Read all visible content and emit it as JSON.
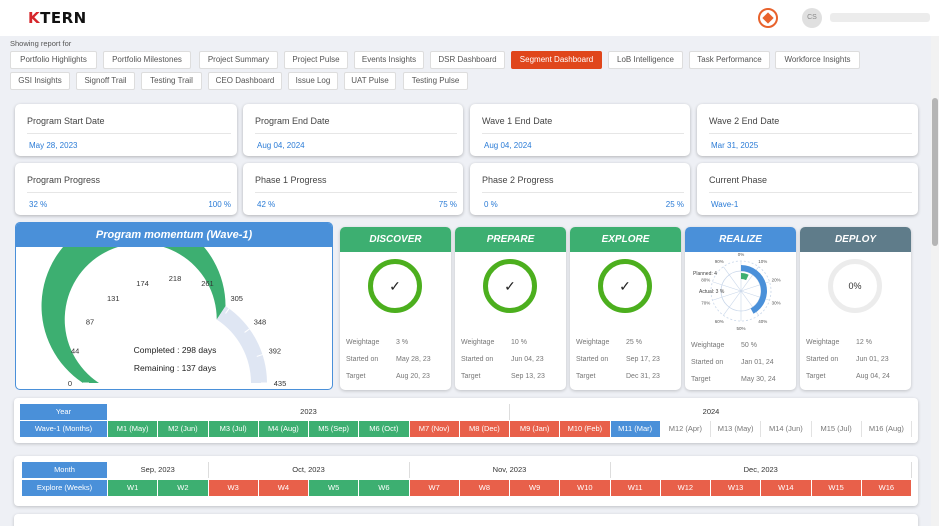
{
  "app": {
    "logo_k": "K",
    "logo_rest": "TERN",
    "avatar_initials": "CS"
  },
  "colors": {
    "accent": "#e0461b",
    "blue": "#4a90d9",
    "green": "#3daf71",
    "red": "#e8604a",
    "ring": "#4caf1e"
  },
  "report": {
    "showing_label": "Showing report for",
    "tabs": [
      "Portfolio Highlights",
      "Portfolio Milestones",
      "Project Summary",
      "Project Pulse",
      "Events Insights",
      "DSR Dashboard",
      "Segment Dashboard",
      "LoB Intelligence",
      "Task Performance",
      "Workforce Insights",
      "GSI Insights",
      "Signoff Trail",
      "Testing Trail",
      "CEO Dashboard",
      "Issue Log",
      "UAT Pulse",
      "Testing Pulse"
    ],
    "active_tab": "Segment Dashboard"
  },
  "summary": {
    "program_start": {
      "label": "Program Start Date",
      "value": "May 28, 2023"
    },
    "program_end": {
      "label": "Program End Date",
      "value": "Aug 04, 2024"
    },
    "wave1_end": {
      "label": "Wave 1 End Date",
      "value": "Aug 04, 2024"
    },
    "wave2_end": {
      "label": "Wave 2 End Date",
      "value": "Mar 31, 2025"
    },
    "program_progress": {
      "label": "Program Progress",
      "value": "32 %",
      "max": "100 %"
    },
    "phase1_progress": {
      "label": "Phase 1 Progress",
      "value": "42 %",
      "max": "75 %"
    },
    "phase2_progress": {
      "label": "Phase 2 Progress",
      "value": "0 %",
      "max": "25 %"
    },
    "current_phase": {
      "label": "Current Phase",
      "value": "Wave-1"
    }
  },
  "momentum": {
    "title": "Program momentum (Wave-1)",
    "completed": "Completed : 298 days",
    "remaining": "Remaining : 137 days",
    "completed_days": 298,
    "total_days": 435,
    "ticks": [
      "0",
      "44",
      "87",
      "131",
      "174",
      "218",
      "261",
      "305",
      "348",
      "392",
      "435"
    ]
  },
  "phases": [
    {
      "name": "DISCOVER",
      "color": "#3daf71",
      "status": "complete",
      "weightage": "3 %",
      "started": "May 28, 23",
      "target": "Aug 20, 23"
    },
    {
      "name": "PREPARE",
      "color": "#3daf71",
      "status": "complete",
      "weightage": "10 %",
      "started": "Jun 04, 23",
      "target": "Sep 13, 23"
    },
    {
      "name": "EXPLORE",
      "color": "#3daf71",
      "status": "complete",
      "weightage": "25 %",
      "started": "Sep 17, 23",
      "target": "Dec 31, 23"
    },
    {
      "name": "REALIZE",
      "color": "#4a90d9",
      "status": "in-progress",
      "weightage": "50 %",
      "started": "Jan 01, 24",
      "target": "May 30, 24",
      "planned_label": "Planned: 4",
      "actual_label": "Actual: 3 %",
      "radial_ticks": [
        "0%",
        "10%",
        "20%",
        "30%",
        "40%",
        "50%",
        "60%",
        "70%",
        "80%",
        "90%"
      ]
    },
    {
      "name": "DEPLOY",
      "color": "#5f7c8a",
      "status": "not-started",
      "value": "0%",
      "weightage": "12 %",
      "started": "Jun 01, 23",
      "target": "Aug 04, 24"
    }
  ],
  "phase_labels": {
    "weightage": "Weightage",
    "started": "Started on",
    "target": "Target"
  },
  "wave_timeline": {
    "year_label": "Year",
    "row_label": "Wave-1 (Months)",
    "years": [
      "2023",
      "2024"
    ],
    "months": [
      {
        "label": "M1 (May)",
        "status": "green"
      },
      {
        "label": "M2 (Jun)",
        "status": "green"
      },
      {
        "label": "M3 (Jul)",
        "status": "green"
      },
      {
        "label": "M4 (Aug)",
        "status": "green"
      },
      {
        "label": "M5 (Sep)",
        "status": "green"
      },
      {
        "label": "M6 (Oct)",
        "status": "green"
      },
      {
        "label": "M7 (Nov)",
        "status": "red"
      },
      {
        "label": "M8 (Dec)",
        "status": "red"
      },
      {
        "label": "M9 (Jan)",
        "status": "red"
      },
      {
        "label": "M10 (Feb)",
        "status": "red"
      },
      {
        "label": "M11 (Mar)",
        "status": "blue"
      },
      {
        "label": "M12 (Apr)",
        "status": "white"
      },
      {
        "label": "M13 (May)",
        "status": "white"
      },
      {
        "label": "M14 (Jun)",
        "status": "white"
      },
      {
        "label": "M15 (Jul)",
        "status": "white"
      },
      {
        "label": "M16 (Aug)",
        "status": "white"
      }
    ]
  },
  "explore_timeline": {
    "month_label": "Month",
    "row_label": "Explore (Weeks)",
    "months": [
      "Sep, 2023",
      "Oct, 2023",
      "Nov, 2023",
      "Dec, 2023"
    ],
    "weeks": [
      {
        "label": "W1",
        "status": "green"
      },
      {
        "label": "W2",
        "status": "green"
      },
      {
        "label": "W3",
        "status": "red"
      },
      {
        "label": "W4",
        "status": "red"
      },
      {
        "label": "W5",
        "status": "green"
      },
      {
        "label": "W6",
        "status": "green"
      },
      {
        "label": "W7",
        "status": "red"
      },
      {
        "label": "W8",
        "status": "red"
      },
      {
        "label": "W9",
        "status": "red"
      },
      {
        "label": "W10",
        "status": "red"
      },
      {
        "label": "W11",
        "status": "red"
      },
      {
        "label": "W12",
        "status": "red"
      },
      {
        "label": "W13",
        "status": "red"
      },
      {
        "label": "W14",
        "status": "red"
      },
      {
        "label": "W15",
        "status": "red"
      },
      {
        "label": "W16",
        "status": "red"
      }
    ]
  }
}
